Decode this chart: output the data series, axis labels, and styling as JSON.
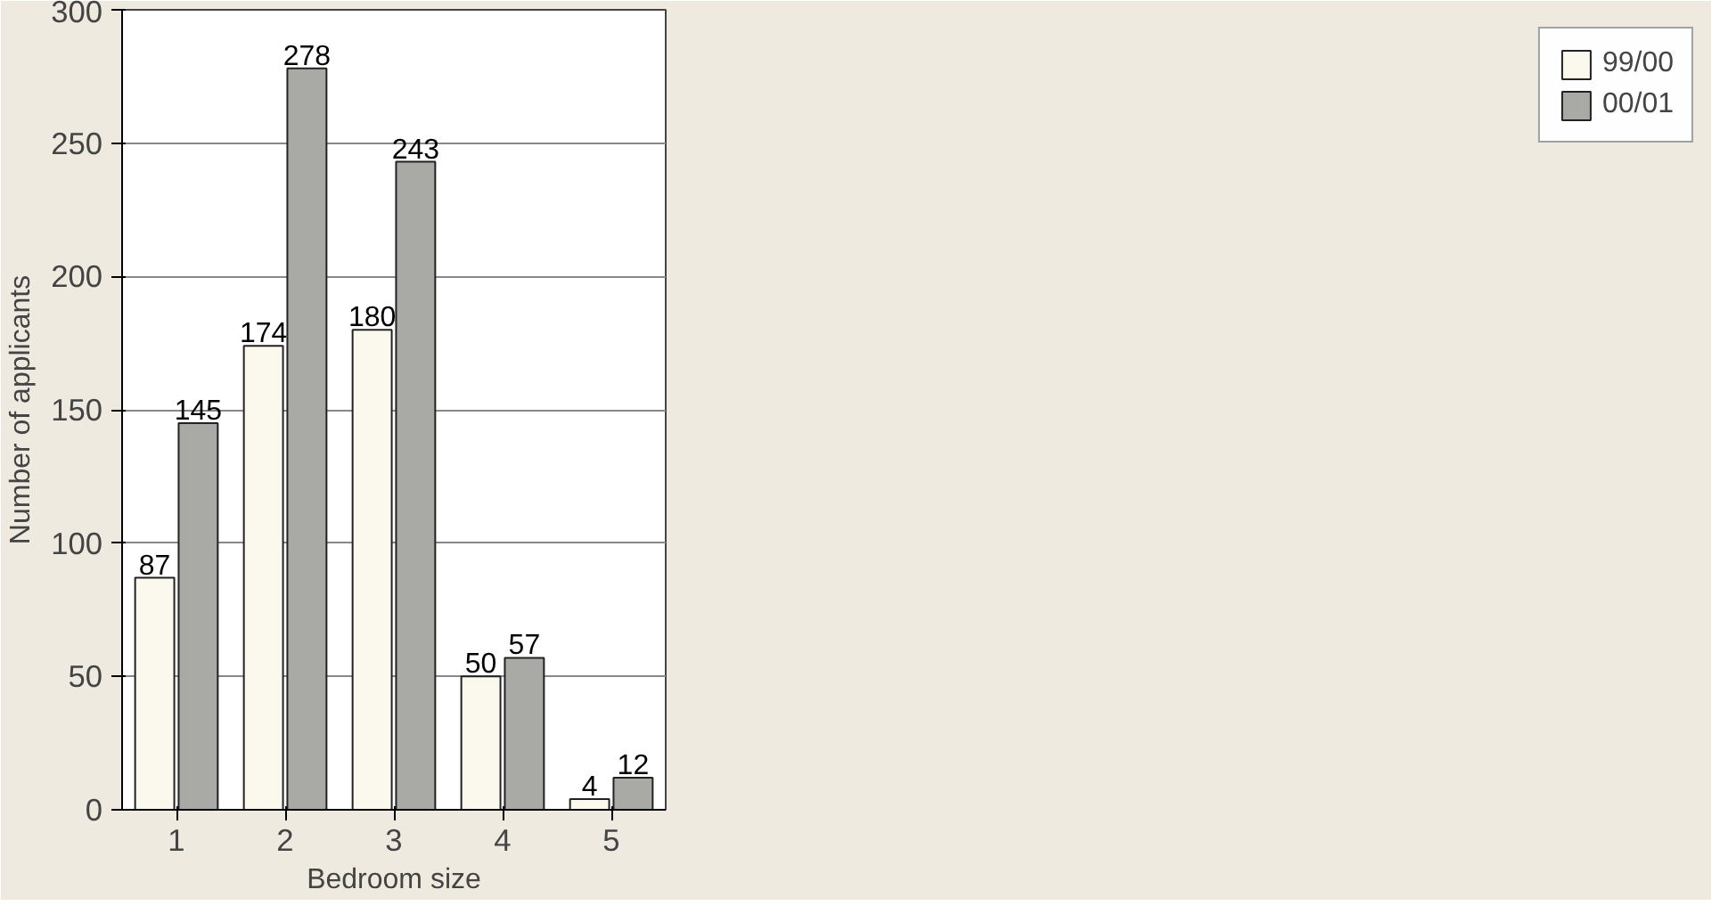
{
  "chart_data": {
    "type": "bar",
    "xlabel": "Bedroom size",
    "ylabel": "Number of applicants",
    "categories": [
      "1",
      "2",
      "3",
      "4",
      "5"
    ],
    "series": [
      {
        "name": "99/00",
        "color": "#fbf8ee",
        "values": [
          87,
          174,
          180,
          50,
          4
        ]
      },
      {
        "name": "00/01",
        "color": "#a9a9a6",
        "values": [
          145,
          278,
          243,
          57,
          12
        ]
      }
    ],
    "ylim": [
      0,
      300
    ],
    "yticks": [
      0,
      50,
      100,
      150,
      200,
      250,
      300
    ],
    "grid": "y",
    "legend": "right",
    "data_labels": true
  }
}
